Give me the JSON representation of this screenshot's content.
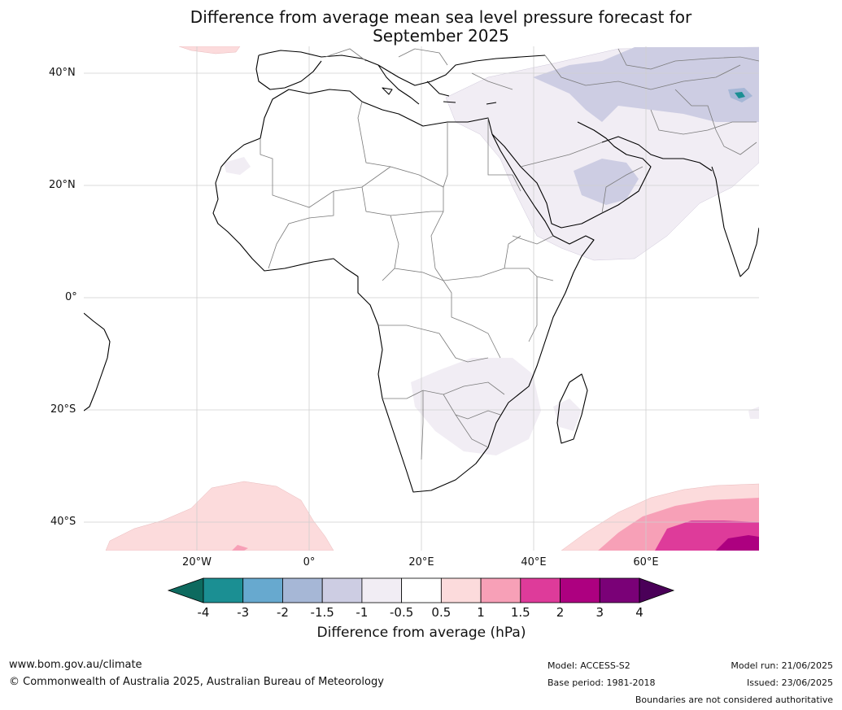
{
  "title_line1": "Difference from average mean sea level pressure forecast for",
  "title_line2": "September 2025",
  "lat_labels": [
    "40°N",
    "20°N",
    "0°",
    "20°S",
    "40°S"
  ],
  "lon_labels": [
    "20°W",
    "0°",
    "20°E",
    "40°E",
    "60°E"
  ],
  "colorbar": {
    "ticks": [
      "-4",
      "-3",
      "-2",
      "-1.5",
      "-1",
      "-0.5",
      "0.5",
      "1",
      "1.5",
      "2",
      "3",
      "4"
    ],
    "colors": [
      "#1b8f93",
      "#67a9cf",
      "#a6b7d6",
      "#cdcde3",
      "#f1edf4",
      "#ffffff",
      "#fcdbdc",
      "#f7a0b7",
      "#de3b9a",
      "#ad0080",
      "#7a0177"
    ],
    "under_color": "#0d6a5f",
    "over_color": "#4a0058",
    "label": "Difference from average (hPa)"
  },
  "footer": {
    "url": "www.bom.gov.au/climate",
    "copyright": "© Commonwealth of Australia 2025, Australian Bureau of Meteorology",
    "model": "Model: ACCESS-S2",
    "base_period": "Base period: 1981-2018",
    "model_run": "Model run: 21/06/2025",
    "issued": "Issued: 23/06/2025",
    "disclaimer": "Boundaries are not considered authoritative"
  }
}
